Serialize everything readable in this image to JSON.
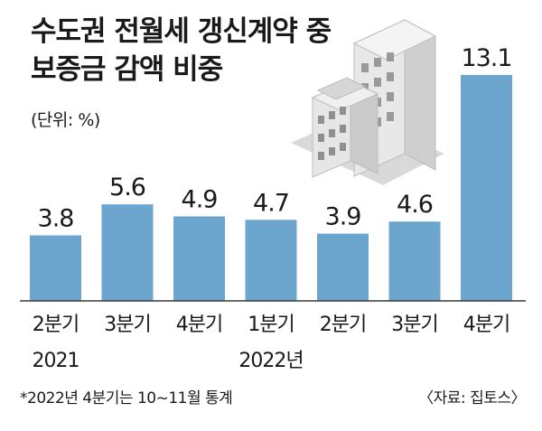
{
  "title_line1": "수도권 전월세 갱신계약 중",
  "title_line2": "보증금 감액 비중",
  "unit": "(단위: %)",
  "footnote": "*2022년 4분기는 10~11월 통계",
  "source": "〈자료: 집토스〉",
  "colors": {
    "bar": "#6ca6cf",
    "axis": "#3a3a3a"
  },
  "icon": "building-illustration",
  "chart_data": {
    "type": "bar",
    "categories": [
      "2분기",
      "3분기",
      "4분기",
      "1분기",
      "2분기",
      "3분기",
      "4분기"
    ],
    "year_labels": [
      {
        "label": "2021",
        "index": 0
      },
      {
        "label": "2022년",
        "index": 3
      }
    ],
    "values": [
      3.8,
      5.6,
      4.9,
      4.7,
      3.9,
      4.6,
      13.1
    ],
    "value_labels": [
      "3.8",
      "5.6",
      "4.9",
      "4.7",
      "3.9",
      "4.6",
      "13.1"
    ],
    "ylim": [
      0,
      13.1
    ],
    "grid": false,
    "legend": "none"
  }
}
